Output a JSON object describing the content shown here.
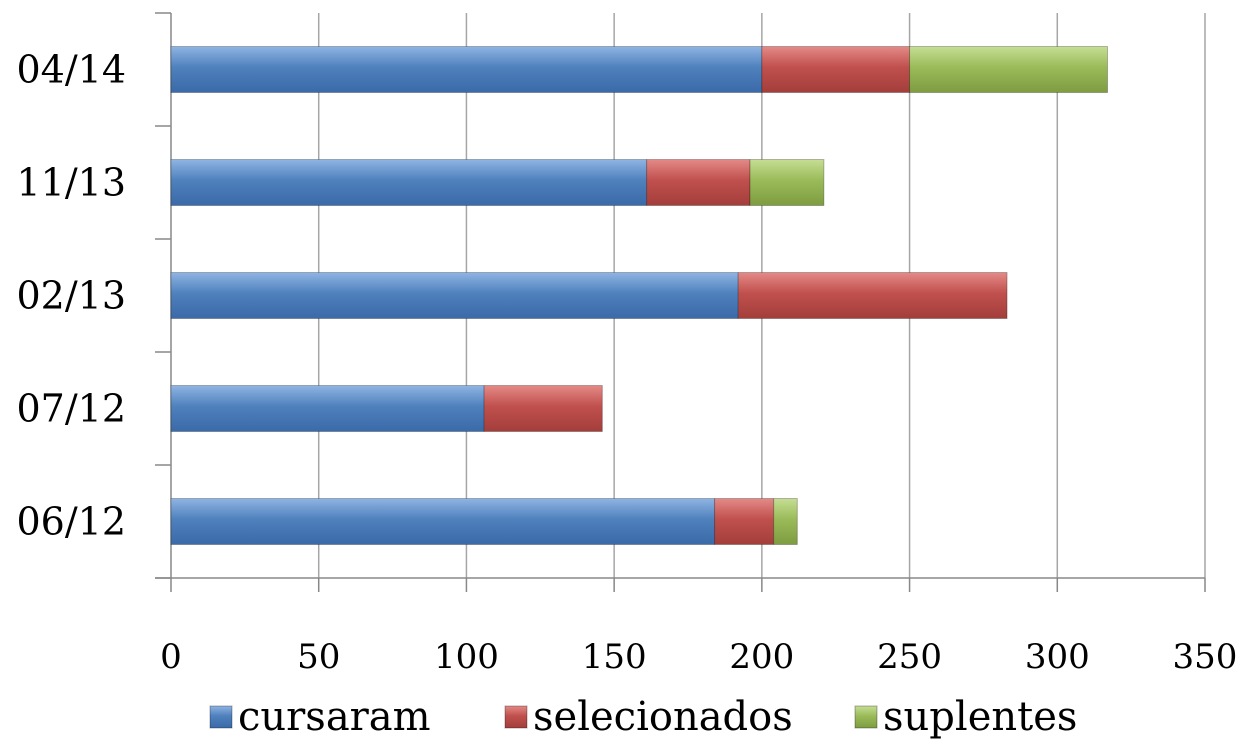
{
  "chart_data": {
    "type": "bar",
    "orientation": "horizontal",
    "stacked": true,
    "title": "",
    "xlabel": "",
    "ylabel": "",
    "categories": [
      "06/12",
      "07/12",
      "02/13",
      "11/13",
      "04/14"
    ],
    "series": [
      {
        "name": "cursaram",
        "color": "#4F81BD",
        "values": [
          184,
          106,
          192,
          161,
          200
        ]
      },
      {
        "name": "selecionados",
        "color": "#C0504D",
        "values": [
          20,
          40,
          91,
          35,
          50
        ]
      },
      {
        "name": "suplentes",
        "color": "#9BBB59",
        "values": [
          8,
          0,
          0,
          25,
          67
        ]
      }
    ],
    "xlim": [
      0,
      350
    ],
    "xticks": [
      "0",
      "50",
      "100",
      "150",
      "200",
      "250",
      "300",
      "350"
    ],
    "grid": true,
    "legend": "bottom"
  }
}
